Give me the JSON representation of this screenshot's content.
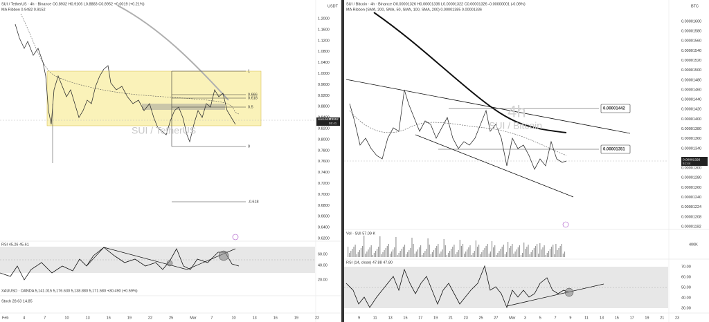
{
  "left": {
    "header": "SUI / TetherUS · 4h · Binance  O0.8932 H0.9106 L0.8883 C0.8952 +0.0019 (+0.21%)",
    "indicator": "MA Ribbon  0.9482  0.9152",
    "currency": "USDT",
    "watermark": "SUI / TetherUS",
    "price_labels": [
      "1.2000",
      "1.1600",
      "1.1200",
      "1.0800",
      "1.0400",
      "1.0000",
      "0.9600",
      "0.9200",
      "0.8800",
      "0.8400",
      "0.8200",
      "0.8000",
      "0.7800",
      "0.7600",
      "0.7400",
      "0.7200",
      "0.7000",
      "0.6800",
      "0.6600",
      "0.6400",
      "0.6200"
    ],
    "price_tag": {
      "symbol": "SUIUSDT",
      "price": "0.8952",
      "countdown": "55:41"
    },
    "fib_levels": [
      "1",
      "0.666",
      "0.618",
      "0.5",
      "0",
      "-0.618"
    ],
    "rsi_title": "RSI  45.26  45.61",
    "rsi_labels": [
      "60.00",
      "40.00",
      "20.00"
    ],
    "gold_line": "XAUUSD · OANDA  5,141.015  5,176.630  5,138.880  5,171.580  +30.490 (+0.59%)",
    "stoch_line": "Stoch  28.63  14.85",
    "x_labels": [
      "Feb",
      "4",
      "7",
      "10",
      "13",
      "16",
      "19",
      "22",
      "25",
      "Mar",
      "7",
      "10",
      "13",
      "16",
      "19",
      "22"
    ]
  },
  "right": {
    "header": "SUI / Bitcoin · 4h · Binance  O0.00001326 H0.00001336 L0.00001322 C0.00001326 -0.00000001 (-0.08%)",
    "indicator": "MA Ribbon (SMA, 200, SMA, 50, SMA, 100, SMA, 200)  0.00001385  0.00001336",
    "currency": "BTC",
    "watermark_interval": "4h",
    "watermark": "SUI / Bitcoin",
    "price_labels": [
      "0.00001600",
      "0.00001580",
      "0.00001560",
      "0.00001540",
      "0.00001520",
      "0.00001500",
      "0.00001480",
      "0.00001460",
      "0.00001440",
      "0.00001420",
      "0.00001400",
      "0.00001380",
      "0.00001360",
      "0.00001340",
      "0.00001320",
      "0.00001300",
      "0.00001280",
      "0.00001260",
      "0.00001240",
      "0.00001224",
      "0.00001208",
      "0.00001192"
    ],
    "level_high": "0.00001442",
    "level_low": "0.00001351",
    "price_tag": {
      "price": "0.00001326",
      "countdown": "51:44"
    },
    "volume_title": "Vol · SUI  57.09 K",
    "volume_label": "400K",
    "rsi_title": "RSI (14, close)  47.88  47.80",
    "rsi_labels": [
      "70.00",
      "60.00",
      "50.00",
      "40.00",
      "30.00"
    ],
    "x_labels": [
      "9",
      "11",
      "13",
      "15",
      "17",
      "19",
      "21",
      "23",
      "25",
      "27",
      "Mar",
      "3",
      "5",
      "7",
      "9",
      "11",
      "13",
      "15",
      "17",
      "19",
      "21",
      "23"
    ]
  }
}
